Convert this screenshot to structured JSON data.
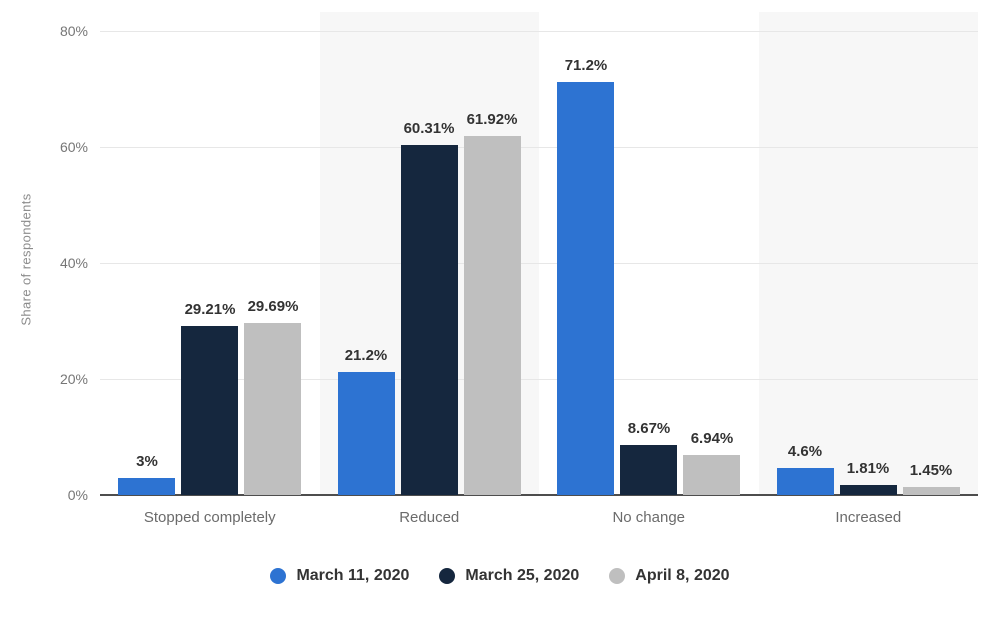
{
  "chart_data": {
    "type": "bar",
    "title": "",
    "ylabel": "Share of respondents",
    "ylim": [
      0,
      80
    ],
    "yticks": [
      {
        "value": 80,
        "label": "80%"
      },
      {
        "value": 60,
        "label": "60%"
      },
      {
        "value": 40,
        "label": "40%"
      },
      {
        "value": 20,
        "label": "20%"
      },
      {
        "value": 0,
        "label": "0%"
      }
    ],
    "categories": [
      "Stopped completely",
      "Reduced",
      "No change",
      "Increased"
    ],
    "series": [
      {
        "name": "March 11, 2020",
        "color": "#2d73d2",
        "values": [
          3,
          21.2,
          71.2,
          4.6
        ],
        "value_labels": [
          "3%",
          "21.2%",
          "71.2%",
          "4.6%"
        ]
      },
      {
        "name": "March 25, 2020",
        "color": "#15273e",
        "values": [
          29.21,
          60.31,
          8.67,
          1.81
        ],
        "value_labels": [
          "29.21%",
          "60.31%",
          "8.67%",
          "1.81%"
        ]
      },
      {
        "name": "April 8, 2020",
        "color": "#bfbfbf",
        "values": [
          29.69,
          61.92,
          6.94,
          1.45
        ],
        "value_labels": [
          "29.69%",
          "61.92%",
          "6.94%",
          "1.45%"
        ]
      }
    ],
    "grid": "horizontal",
    "legend_position": "bottom",
    "colors": {
      "plot_band_alt": "#f7f7f7",
      "axis_line": "#4d4d4d",
      "gridline": "#e7e7e7",
      "tick_text": "#767676",
      "category_text": "#6b6b6b",
      "value_text": "#333333",
      "legend_text": "#333333"
    }
  }
}
